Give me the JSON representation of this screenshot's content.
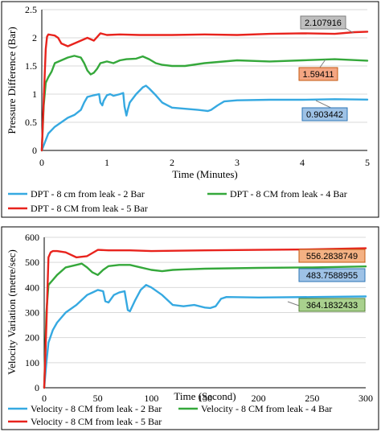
{
  "chart_data": [
    {
      "type": "line",
      "xlabel": "Time (Minutes)",
      "ylabel": "Pressure Difference (Bar)",
      "xlim": [
        0,
        5
      ],
      "ylim": [
        0,
        2.5
      ],
      "xticks": [
        "0",
        "1",
        "2",
        "3",
        "4",
        "5"
      ],
      "yticks": [
        "0",
        "0.5",
        "1",
        "1.5",
        "2",
        "2.5"
      ],
      "grid": "horizontal",
      "legend_position": "bottom",
      "series": [
        {
          "name": "DPT - 8 cm from leak - 2 Bar",
          "color": "#36a9e1",
          "x": [
            0,
            0.05,
            0.1,
            0.2,
            0.3,
            0.4,
            0.5,
            0.6,
            0.65,
            0.7,
            0.8,
            0.88,
            0.9,
            0.93,
            0.95,
            1.0,
            1.05,
            1.1,
            1.2,
            1.25,
            1.27,
            1.3,
            1.32,
            1.35,
            1.45,
            1.55,
            1.6,
            1.65,
            1.75,
            1.85,
            2.0,
            2.2,
            2.4,
            2.55,
            2.6,
            2.7,
            2.8,
            3.0,
            3.5,
            4.0,
            4.5,
            5.0
          ],
          "y": [
            0.0,
            0.15,
            0.3,
            0.42,
            0.5,
            0.58,
            0.63,
            0.72,
            0.85,
            0.95,
            0.98,
            1.0,
            0.85,
            0.8,
            0.88,
            0.98,
            1.0,
            0.97,
            1.0,
            1.02,
            0.78,
            0.62,
            0.72,
            0.85,
            1.0,
            1.12,
            1.15,
            1.1,
            0.98,
            0.85,
            0.76,
            0.74,
            0.72,
            0.7,
            0.72,
            0.8,
            0.87,
            0.89,
            0.9,
            0.9,
            0.91,
            0.903442
          ]
        },
        {
          "name": "DPT - 8 CM from leak - 4 Bar",
          "color": "#35a83b",
          "x": [
            0,
            0.03,
            0.06,
            0.1,
            0.15,
            0.2,
            0.3,
            0.4,
            0.5,
            0.6,
            0.65,
            0.7,
            0.75,
            0.8,
            0.85,
            0.9,
            1.0,
            1.1,
            1.2,
            1.3,
            1.45,
            1.55,
            1.65,
            1.75,
            1.85,
            2.0,
            2.2,
            2.5,
            3.0,
            3.5,
            4.0,
            4.5,
            5.0
          ],
          "y": [
            0.0,
            0.8,
            1.2,
            1.3,
            1.4,
            1.55,
            1.6,
            1.65,
            1.68,
            1.65,
            1.55,
            1.42,
            1.35,
            1.38,
            1.45,
            1.55,
            1.58,
            1.55,
            1.6,
            1.62,
            1.63,
            1.67,
            1.62,
            1.55,
            1.52,
            1.5,
            1.5,
            1.55,
            1.6,
            1.58,
            1.6,
            1.62,
            1.59411
          ]
        },
        {
          "name": "DPT - 8 CM from leak - 5 Bar",
          "color": "#e8231d",
          "x": [
            0,
            0.03,
            0.06,
            0.08,
            0.1,
            0.15,
            0.2,
            0.25,
            0.3,
            0.4,
            0.5,
            0.6,
            0.7,
            0.8,
            0.9,
            1.0,
            1.2,
            1.5,
            2.0,
            2.5,
            3.0,
            3.5,
            4.0,
            4.5,
            4.8,
            5.0
          ],
          "y": [
            0.0,
            0.9,
            1.8,
            2.02,
            2.06,
            2.05,
            2.04,
            2.0,
            1.9,
            1.85,
            1.9,
            1.95,
            2.0,
            1.95,
            2.08,
            2.05,
            2.06,
            2.05,
            2.05,
            2.06,
            2.05,
            2.07,
            2.08,
            2.07,
            2.1,
            2.107916
          ]
        }
      ],
      "annotations": [
        "2.107916",
        "1.59411",
        "0.903442"
      ],
      "annotation_colors": [
        "#bfbfbf",
        "#f4a582",
        "#9ec2e6"
      ]
    },
    {
      "type": "line",
      "xlabel": "Time (Second)",
      "ylabel": "Velocity Variation (metre/sec)",
      "xlim": [
        0,
        300
      ],
      "ylim": [
        0,
        600
      ],
      "xticks": [
        "0",
        "50",
        "100",
        "150",
        "200",
        "250",
        "300"
      ],
      "yticks": [
        "0",
        "100",
        "200",
        "300",
        "400",
        "500",
        "600"
      ],
      "grid": "horizontal",
      "legend_position": "bottom",
      "series": [
        {
          "name": "Velocity - 8 CM from leak - 2 Bar",
          "color": "#36a9e1",
          "x": [
            0,
            2,
            4,
            8,
            12,
            20,
            30,
            40,
            45,
            50,
            55,
            57,
            60,
            65,
            70,
            75,
            78,
            80,
            85,
            90,
            95,
            100,
            110,
            120,
            130,
            140,
            150,
            155,
            160,
            165,
            170,
            200,
            250,
            300
          ],
          "y": [
            0,
            100,
            180,
            230,
            260,
            300,
            330,
            370,
            380,
            390,
            385,
            345,
            340,
            370,
            380,
            385,
            310,
            305,
            350,
            390,
            410,
            400,
            370,
            330,
            325,
            330,
            320,
            318,
            325,
            355,
            362,
            360,
            362,
            364.1832433
          ]
        },
        {
          "name": "Velocity - 8 CM from leak - 4 Bar",
          "color": "#35a83b",
          "x": [
            0,
            2,
            4,
            8,
            12,
            20,
            30,
            35,
            40,
            45,
            50,
            55,
            60,
            70,
            80,
            90,
            100,
            110,
            120,
            130,
            150,
            200,
            250,
            300
          ],
          "y": [
            0,
            300,
            410,
            430,
            450,
            480,
            490,
            495,
            480,
            460,
            450,
            470,
            485,
            490,
            490,
            480,
            470,
            465,
            470,
            472,
            475,
            478,
            480,
            483.7588955
          ]
        },
        {
          "name": "Velocity - 8 CM from leak - 5 Bar",
          "color": "#e8231d",
          "x": [
            0,
            2,
            4,
            6,
            8,
            12,
            20,
            30,
            40,
            50,
            60,
            80,
            100,
            150,
            200,
            250,
            300
          ],
          "y": [
            0,
            250,
            520,
            540,
            545,
            545,
            540,
            520,
            525,
            550,
            548,
            548,
            545,
            548,
            550,
            552,
            556.2838749
          ]
        }
      ],
      "annotations": [
        "556.2838749",
        "483.7588955",
        "364.1832433"
      ],
      "annotation_colors": [
        "#f4b183",
        "#9ec2e6",
        "#a9d18e"
      ]
    }
  ]
}
